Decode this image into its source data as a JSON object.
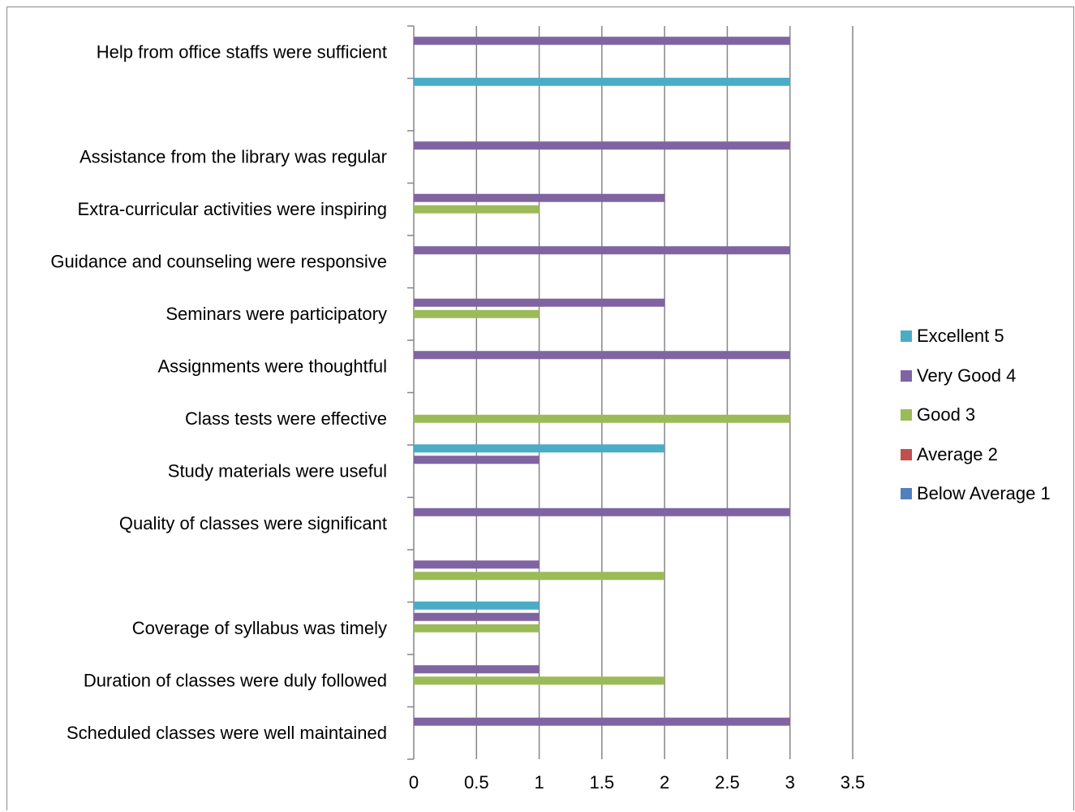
{
  "chart_data": {
    "type": "bar",
    "orientation": "horizontal",
    "categories": [
      "Scheduled classes were well maintained",
      "Duration of classes were duly followed",
      "Coverage of syllabus was timely",
      "",
      "Quality of classes were significant",
      "Study materials were useful",
      "Class tests were effective",
      "Assignments were thoughtful",
      "Seminars were participatory",
      "Guidance and counseling were responsive",
      "Extra-curricular activities were inspiring",
      "Assistance from the library was regular",
      "",
      "Help from office staffs were sufficient"
    ],
    "series": [
      {
        "name": "Below Average 1",
        "color": "#4f81bd",
        "values": [
          0,
          0,
          0,
          0,
          0,
          0,
          0,
          0,
          0,
          0,
          0,
          0,
          0,
          0
        ]
      },
      {
        "name": "Average 2",
        "color": "#c0504d",
        "values": [
          0,
          0,
          0,
          0,
          0,
          0,
          0,
          0,
          0,
          0,
          0,
          0,
          0,
          0
        ]
      },
      {
        "name": "Good 3",
        "color": "#9bbb59",
        "values": [
          0,
          2,
          1,
          2,
          0,
          0,
          3,
          0,
          1,
          0,
          1,
          0,
          0,
          0
        ]
      },
      {
        "name": "Very Good 4",
        "color": "#8064a2",
        "values": [
          3,
          1,
          1,
          1,
          3,
          1,
          0,
          3,
          2,
          3,
          2,
          3,
          0,
          3
        ]
      },
      {
        "name": "Excellent 5",
        "color": "#4bacc6",
        "values": [
          0,
          0,
          1,
          0,
          0,
          2,
          0,
          0,
          0,
          0,
          0,
          0,
          3,
          0
        ]
      }
    ],
    "xlim": [
      0,
      3.5
    ],
    "xticks": [
      "0",
      "0.5",
      "1",
      "1.5",
      "2",
      "2.5",
      "3",
      "3.5"
    ],
    "grid": "vertical",
    "legend_position": "right",
    "legend_order": [
      "Excellent 5",
      "Very Good 4",
      "Good 3",
      "Average 2",
      "Below Average 1"
    ]
  }
}
